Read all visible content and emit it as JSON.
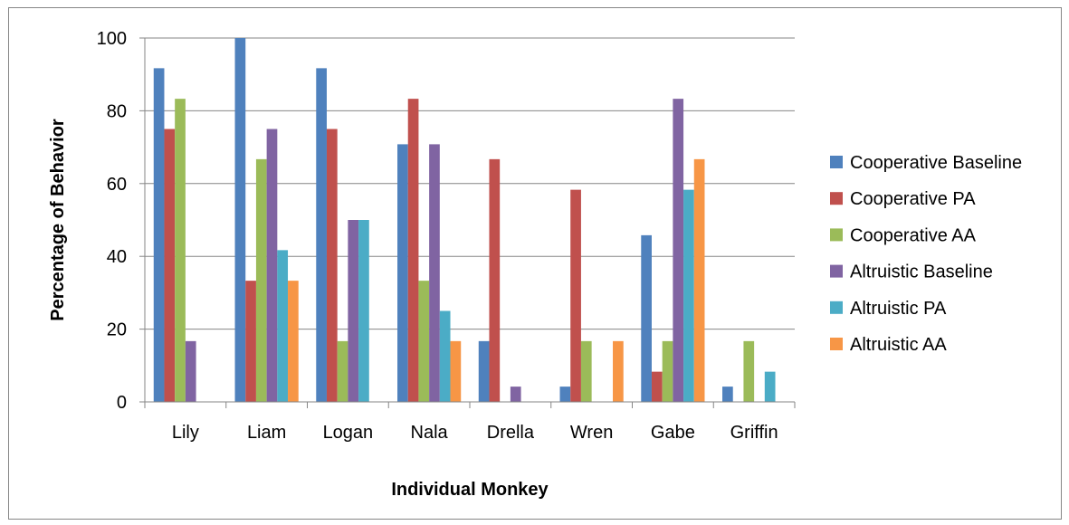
{
  "chart_data": {
    "type": "bar",
    "title": "",
    "xlabel": "Individual Monkey",
    "ylabel": "Percentage of Behavior",
    "ylim": [
      0,
      100
    ],
    "yticks": [
      0,
      20,
      40,
      60,
      80,
      100
    ],
    "grid": true,
    "legend_position": "right",
    "categories": [
      "Lily",
      "Liam",
      "Logan",
      "Nala",
      "Drella",
      "Wren",
      "Gabe",
      "Griffin"
    ],
    "series": [
      {
        "name": "Cooperative Baseline",
        "color": "#4F81BD",
        "values": [
          91.7,
          100,
          91.7,
          70.8,
          16.7,
          4.2,
          45.8,
          4.2
        ]
      },
      {
        "name": "Cooperative PA",
        "color": "#C0504D",
        "values": [
          75,
          33.3,
          75,
          83.3,
          66.7,
          58.3,
          8.3,
          0
        ]
      },
      {
        "name": "Cooperative AA",
        "color": "#9BBB59",
        "values": [
          83.3,
          66.7,
          16.7,
          33.3,
          0,
          16.7,
          16.7,
          16.7
        ]
      },
      {
        "name": "Altruistic Baseline",
        "color": "#8064A2",
        "values": [
          16.7,
          75,
          50,
          70.8,
          4.2,
          0,
          83.3,
          0
        ]
      },
      {
        "name": "Altruistic PA",
        "color": "#4BACC6",
        "values": [
          0,
          41.7,
          50,
          25,
          0,
          0,
          58.3,
          8.3
        ]
      },
      {
        "name": "Altruistic AA",
        "color": "#F79646",
        "values": [
          0,
          33.3,
          0,
          16.7,
          0,
          16.7,
          66.7,
          0
        ]
      }
    ]
  }
}
